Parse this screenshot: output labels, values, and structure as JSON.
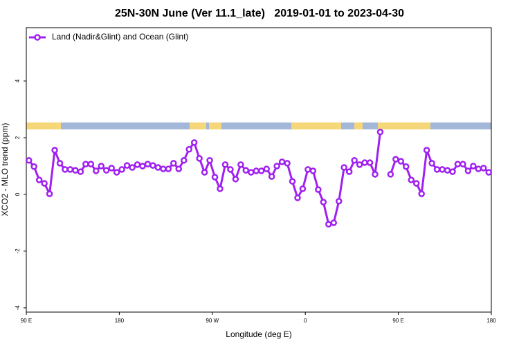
{
  "chart_data": {
    "type": "line",
    "title": "25N-30N June (Ver 11.1_late)   2019-01-01 to 2023-04-30",
    "xlabel": "Longitude (deg E)",
    "ylabel": "XCO2 - MLO trend (ppm)",
    "xlim": [
      90,
      540
    ],
    "ylim": [
      -4.15,
      5.88
    ],
    "xticks": [
      {
        "value": 90,
        "label": "90 E"
      },
      {
        "value": 180,
        "label": "180"
      },
      {
        "value": 270,
        "label": "90 W"
      },
      {
        "value": 360,
        "label": "0"
      },
      {
        "value": 450,
        "label": "90 E"
      },
      {
        "value": 540,
        "label": "180"
      }
    ],
    "yticks": [
      -4,
      -2,
      0,
      2,
      4
    ],
    "legend": "upper left",
    "x": [
      92.5,
      97.5,
      102.5,
      107.5,
      112.5,
      117.5,
      122.5,
      127.5,
      132.5,
      137.5,
      142.5,
      147.5,
      152.5,
      157.5,
      162.5,
      167.5,
      172.5,
      177.5,
      182.5,
      187.5,
      192.5,
      197.5,
      202.5,
      207.5,
      212.5,
      217.5,
      222.5,
      227.5,
      232.5,
      237.5,
      242.5,
      247.5,
      252.5,
      257.5,
      262.5,
      267.5,
      272.5,
      277.5,
      282.5,
      287.5,
      292.5,
      297.5,
      302.5,
      307.5,
      312.5,
      317.5,
      322.5,
      327.5,
      332.5,
      337.5,
      342.5,
      347.5,
      352.5,
      357.5,
      362.5,
      367.5,
      372.5,
      377.5,
      382.5,
      387.5,
      392.5,
      397.5,
      402.5,
      407.5,
      412.5,
      417.5,
      422.5,
      427.5,
      432.5,
      437.5,
      442.5,
      447.5,
      452.5,
      457.5,
      462.5,
      467.5,
      472.5,
      477.5,
      482.5,
      487.5,
      492.5,
      497.5,
      502.5,
      507.5,
      512.5,
      517.5,
      522.5,
      527.5,
      532.5,
      537.5
    ],
    "series": [
      {
        "name": "Land (Nadir&Glint) and Ocean (Glint)",
        "color": "#a020f0",
        "values": [
          1.2,
          0.98,
          0.51,
          0.39,
          0.02,
          1.56,
          1.1,
          0.88,
          0.88,
          0.85,
          0.8,
          1.07,
          1.07,
          0.83,
          1.0,
          0.85,
          0.93,
          0.78,
          0.88,
          1.02,
          0.95,
          1.05,
          1.0,
          1.07,
          1.02,
          0.95,
          0.9,
          0.9,
          1.1,
          0.9,
          1.2,
          1.59,
          1.83,
          1.27,
          0.78,
          1.2,
          0.61,
          0.2,
          1.05,
          0.88,
          0.54,
          1.05,
          0.85,
          0.78,
          0.83,
          0.83,
          0.9,
          0.63,
          1.0,
          1.15,
          1.1,
          0.46,
          -0.12,
          0.2,
          0.88,
          0.83,
          0.17,
          -0.27,
          -1.05,
          -1.0,
          -0.24,
          0.95,
          0.8,
          1.2,
          1.05,
          1.12,
          1.12,
          0.71,
          2.2,
          null,
          0.71,
          1.24,
          1.17,
          0.98,
          0.51,
          0.39,
          0.02,
          1.56,
          1.1,
          0.88,
          0.88,
          0.85,
          0.8,
          1.07,
          1.07,
          0.83,
          1.0,
          0.9,
          0.93,
          0.78
        ]
      }
    ]
  }
}
